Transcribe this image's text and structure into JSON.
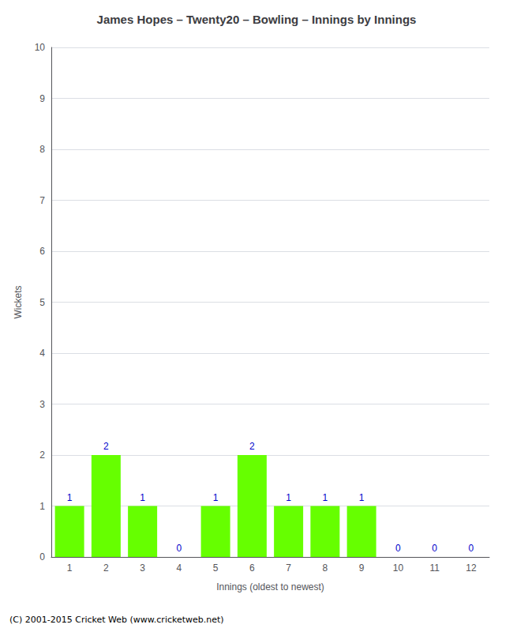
{
  "chart_data": {
    "type": "bar",
    "title": "James Hopes – Twenty20 – Bowling – Innings by Innings",
    "xlabel": "Innings (oldest to newest)",
    "ylabel": "Wickets",
    "categories": [
      1,
      2,
      3,
      4,
      5,
      6,
      7,
      8,
      9,
      10,
      11,
      12
    ],
    "values": [
      1,
      2,
      1,
      0,
      1,
      2,
      1,
      1,
      1,
      0,
      0,
      0
    ],
    "color": "#66ff00",
    "label_color": "#0000cc",
    "ylim": [
      0,
      10
    ],
    "yticks": [
      0,
      1,
      2,
      3,
      4,
      5,
      6,
      7,
      8,
      9,
      10
    ],
    "grid": true,
    "data_labels": true,
    "footer": "(C) 2001-2015 Cricket Web (www.cricketweb.net)"
  }
}
